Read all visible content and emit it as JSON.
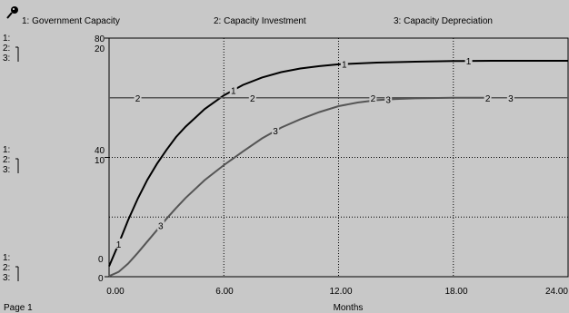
{
  "header": {
    "series": [
      {
        "num": "1",
        "label": "1: Government Capacity"
      },
      {
        "num": "2",
        "label": "2: Capacity Investment"
      },
      {
        "num": "3",
        "label": "3: Capacity Depreciation"
      }
    ],
    "icon": "pin-icon"
  },
  "page_label": "Page 1",
  "axis_marker": {
    "s1": "1:",
    "s2": "2:",
    "s3": "3:"
  },
  "chart_data": {
    "type": "line",
    "xlabel": "Months",
    "xlim": [
      0,
      24
    ],
    "xticks": [
      "0.00",
      "6.00",
      "12.00",
      "18.00",
      "24.00"
    ],
    "y_scales": [
      {
        "series": "1",
        "ticks": [
          "0",
          "40",
          "80"
        ],
        "ylim": [
          0,
          80
        ]
      },
      {
        "series": "2",
        "ticks": [
          "0",
          "10",
          "20"
        ],
        "ylim": [
          0,
          20
        ]
      },
      {
        "series": "3",
        "ticks": [
          "0",
          "10",
          "20"
        ],
        "ylim": [
          0,
          20
        ]
      }
    ],
    "grid": true,
    "series": [
      {
        "name": "Government Capacity",
        "key": "1",
        "color": "#000000",
        "x": [
          0,
          0.5,
          1,
          1.5,
          2,
          2.5,
          3,
          3.5,
          4,
          5,
          6,
          7,
          8,
          9,
          10,
          11,
          12,
          14,
          16,
          18,
          20,
          24
        ],
        "y": [
          3.5,
          11,
          19,
          26.2,
          32.5,
          37.8,
          42.5,
          46.8,
          50.3,
          56.2,
          60.8,
          64.3,
          66.8,
          68.6,
          69.8,
          70.6,
          71.2,
          71.8,
          72.1,
          72.3,
          72.4,
          72.4
        ]
      },
      {
        "name": "Capacity Investment",
        "key": "2",
        "color": "#555555",
        "x": [
          0,
          24
        ],
        "y": [
          15,
          15
        ]
      },
      {
        "name": "Capacity Depreciation",
        "key": "3",
        "color": "#555555",
        "x": [
          0,
          0.5,
          1,
          1.5,
          2,
          2.5,
          3,
          3.5,
          4,
          5,
          6,
          7,
          8,
          9,
          10,
          11,
          12,
          13,
          14,
          15,
          16,
          18,
          20
        ],
        "y": [
          0.05,
          0.4,
          1.1,
          2.0,
          2.95,
          3.9,
          4.85,
          5.75,
          6.6,
          8.1,
          9.35,
          10.5,
          11.6,
          12.5,
          13.2,
          13.8,
          14.3,
          14.6,
          14.8,
          14.9,
          14.95,
          15,
          15
        ]
      }
    ],
    "markers": [
      {
        "key": "1",
        "x": [
          0.5,
          6.5,
          12.3,
          18.8
        ]
      },
      {
        "key": "2",
        "x": [
          1.5,
          7.5,
          13.8,
          19.8
        ]
      },
      {
        "key": "3",
        "x": [
          2.7,
          8.7,
          14.6,
          21
        ]
      }
    ]
  }
}
